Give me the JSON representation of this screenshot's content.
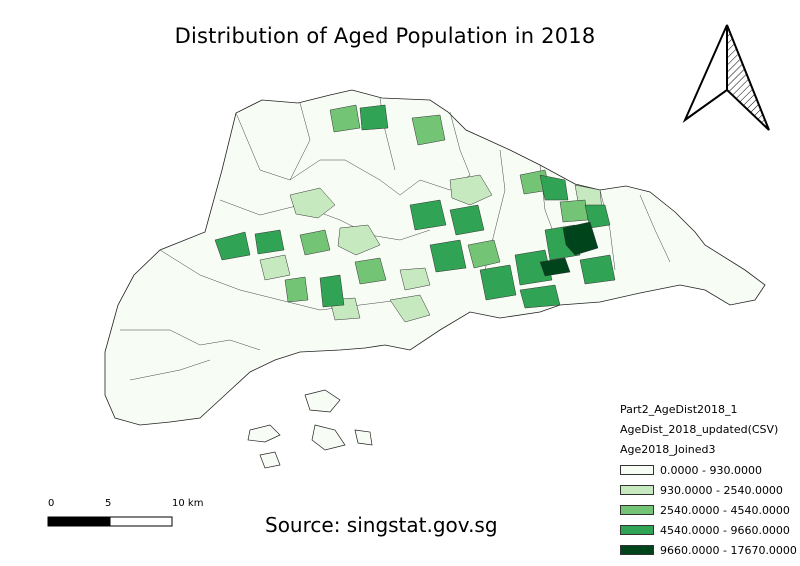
{
  "title": "Distribution of Aged Population in 2018",
  "source": "Source: singstat.gov.sg",
  "north_arrow": {
    "icon": "north-arrow-icon"
  },
  "legend": {
    "layers": [
      "Part2_AgeDist2018_1",
      "AgeDist_2018_updated(CSV)",
      "Age2018_Joined3"
    ],
    "classes": [
      {
        "label": "0.0000 - 930.0000",
        "color": "#f7fcf5"
      },
      {
        "label": "930.0000 - 2540.0000",
        "color": "#c7e9c0"
      },
      {
        "label": "2540.0000 - 4540.0000",
        "color": "#74c476"
      },
      {
        "label": "4540.0000 - 9660.0000",
        "color": "#31a354"
      },
      {
        "label": "9660.0000 - 17670.0000",
        "color": "#00441b"
      }
    ]
  },
  "scale_bar": {
    "ticks": [
      "0",
      "5",
      "10 km"
    ]
  }
}
